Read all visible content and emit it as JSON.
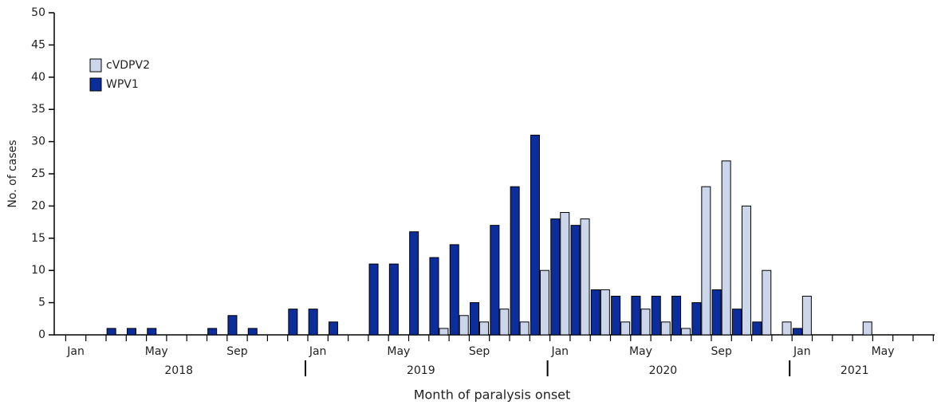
{
  "chart_data": {
    "type": "bar",
    "x_label": "Month of paralysis onset",
    "y_label": "No. of cases",
    "categories": [
      "Jan",
      null,
      null,
      null,
      "May",
      null,
      null,
      null,
      "Sep",
      null,
      null,
      null,
      "Jan",
      null,
      null,
      null,
      "May",
      null,
      null,
      null,
      "Sep",
      null,
      null,
      null,
      "Jan",
      null,
      null,
      null,
      "May",
      null,
      null,
      null,
      "Sep",
      null,
      null,
      null,
      "Jan",
      null,
      null,
      null,
      "May",
      null,
      null
    ],
    "years": [
      "2018",
      "2019",
      "2020",
      "2021"
    ],
    "series": [
      {
        "name": "WPV1",
        "color": "#0c2d9c",
        "values": [
          0,
          0,
          1,
          1,
          1,
          0,
          0,
          1,
          3,
          1,
          0,
          4,
          4,
          2,
          0,
          11,
          11,
          16,
          12,
          14,
          5,
          17,
          23,
          31,
          18,
          17,
          7,
          6,
          6,
          6,
          6,
          5,
          7,
          4,
          2,
          0,
          1,
          0,
          0,
          0,
          0,
          0,
          0
        ]
      },
      {
        "name": "cVDPV2",
        "color": "#ccd6ea",
        "values": [
          0,
          0,
          0,
          0,
          0,
          0,
          0,
          0,
          0,
          0,
          0,
          0,
          0,
          0,
          0,
          0,
          0,
          0,
          1,
          3,
          2,
          4,
          2,
          10,
          19,
          18,
          7,
          2,
          4,
          2,
          1,
          23,
          27,
          20,
          10,
          2,
          6,
          0,
          0,
          2,
          0,
          0,
          0
        ]
      }
    ],
    "ylim": [
      0,
      50
    ],
    "yticks": [
      0,
      5,
      10,
      15,
      20,
      25,
      30,
      35,
      40,
      45,
      50
    ]
  }
}
